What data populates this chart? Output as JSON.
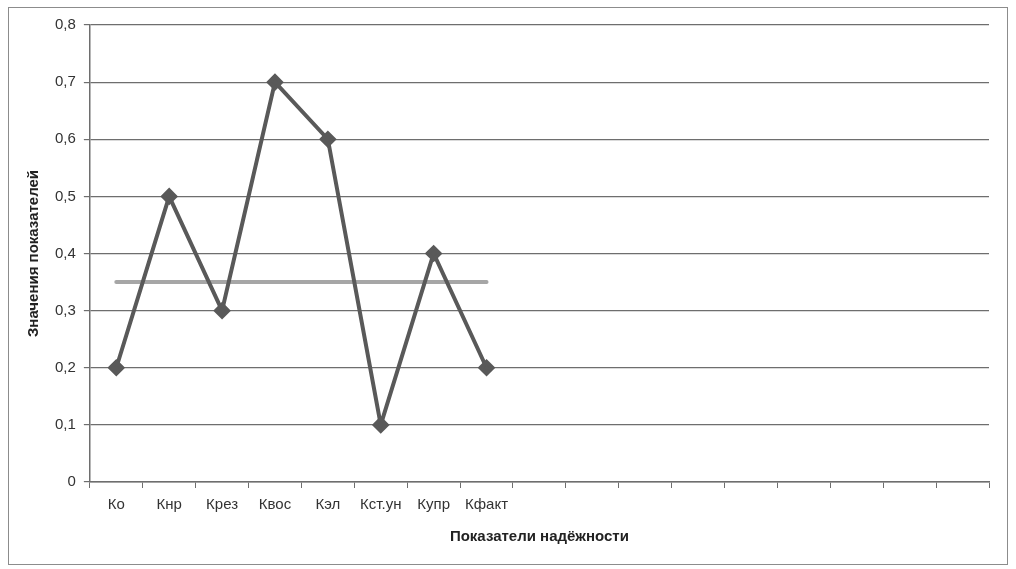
{
  "chart_data": {
    "type": "line",
    "xlabel": "Показатели надёжности",
    "ylabel": "Значения показателей",
    "categories": [
      "Ко",
      "Кнр",
      "Крез",
      "Квос",
      "Кэл",
      "Кст.ун",
      "Купр",
      "Кфакт",
      null,
      null,
      null,
      null,
      null,
      null,
      null,
      null,
      null
    ],
    "series": [
      {
        "color": "#595959",
        "values": [
          0.2,
          0.5,
          0.3,
          0.7,
          0.6,
          0.1,
          0.4,
          0.2,
          null,
          null,
          null,
          null,
          null,
          null,
          null,
          null,
          null
        ]
      },
      {
        "color": "#a6a6a6",
        "marker": "none",
        "values": [
          0.35,
          0.35,
          0.35,
          0.35,
          0.35,
          0.35,
          0.35,
          0.35,
          null,
          null,
          null,
          null,
          null,
          null,
          null,
          null,
          null
        ]
      }
    ],
    "ylim": [
      0,
      0.8
    ],
    "yticks": [
      0,
      {
        "value": 0.1,
        "label": "0,1"
      },
      {
        "value": 0.2,
        "label": "0,2"
      },
      {
        "value": 0.3,
        "label": "0,3"
      },
      {
        "value": 0.4,
        "label": "0,4"
      },
      {
        "value": 0.5,
        "label": "0,5"
      },
      {
        "value": 0.6,
        "label": "0,6"
      },
      {
        "value": 0.7,
        "label": "0,7"
      },
      {
        "value": 0.8,
        "label": "0,8"
      }
    ],
    "grid": "y",
    "legend": false,
    "marker": "diamond",
    "line_style": "solid"
  }
}
